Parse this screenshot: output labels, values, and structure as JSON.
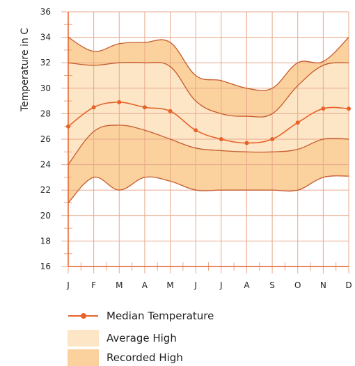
{
  "chart_data": {
    "type": "area",
    "ylabel": "Temperature in C",
    "xlabel": "",
    "categories": [
      "J",
      "F",
      "M",
      "A",
      "M",
      "J",
      "J",
      "A",
      "S",
      "O",
      "N",
      "D"
    ],
    "ylim": [
      16,
      36
    ],
    "yticks": [
      16,
      18,
      20,
      22,
      24,
      26,
      28,
      30,
      32,
      34,
      36
    ],
    "grid": true,
    "legend_position": "bottom",
    "colors": {
      "line": "#e8622a",
      "grid": "#e8a88a",
      "average_fill": "#fde6c6",
      "recorded_fill": "#fbd29e",
      "band_edge": "#c65a2c"
    },
    "series": [
      {
        "name": "Median Temperature",
        "values": [
          27.0,
          28.5,
          28.9,
          28.5,
          28.2,
          26.7,
          26.0,
          25.7,
          26.0,
          27.3,
          28.4,
          28.4
        ]
      },
      {
        "name": "Average High",
        "upper": [
          32.0,
          31.8,
          32.0,
          32.0,
          31.7,
          29.0,
          28.0,
          27.8,
          28.0,
          30.2,
          31.8,
          32.0
        ],
        "lower": [
          24.0,
          26.6,
          27.1,
          26.7,
          26.0,
          25.3,
          25.1,
          25.0,
          25.0,
          25.2,
          26.0,
          26.0
        ]
      },
      {
        "name": "Recorded High",
        "upper": [
          34.0,
          32.9,
          33.5,
          33.6,
          33.6,
          31.0,
          30.6,
          30.0,
          30.0,
          32.0,
          32.1,
          34.0
        ],
        "lower": [
          21.0,
          23.0,
          22.0,
          23.0,
          22.7,
          22.0,
          22.0,
          22.0,
          22.0,
          22.0,
          23.0,
          23.1
        ]
      }
    ]
  }
}
